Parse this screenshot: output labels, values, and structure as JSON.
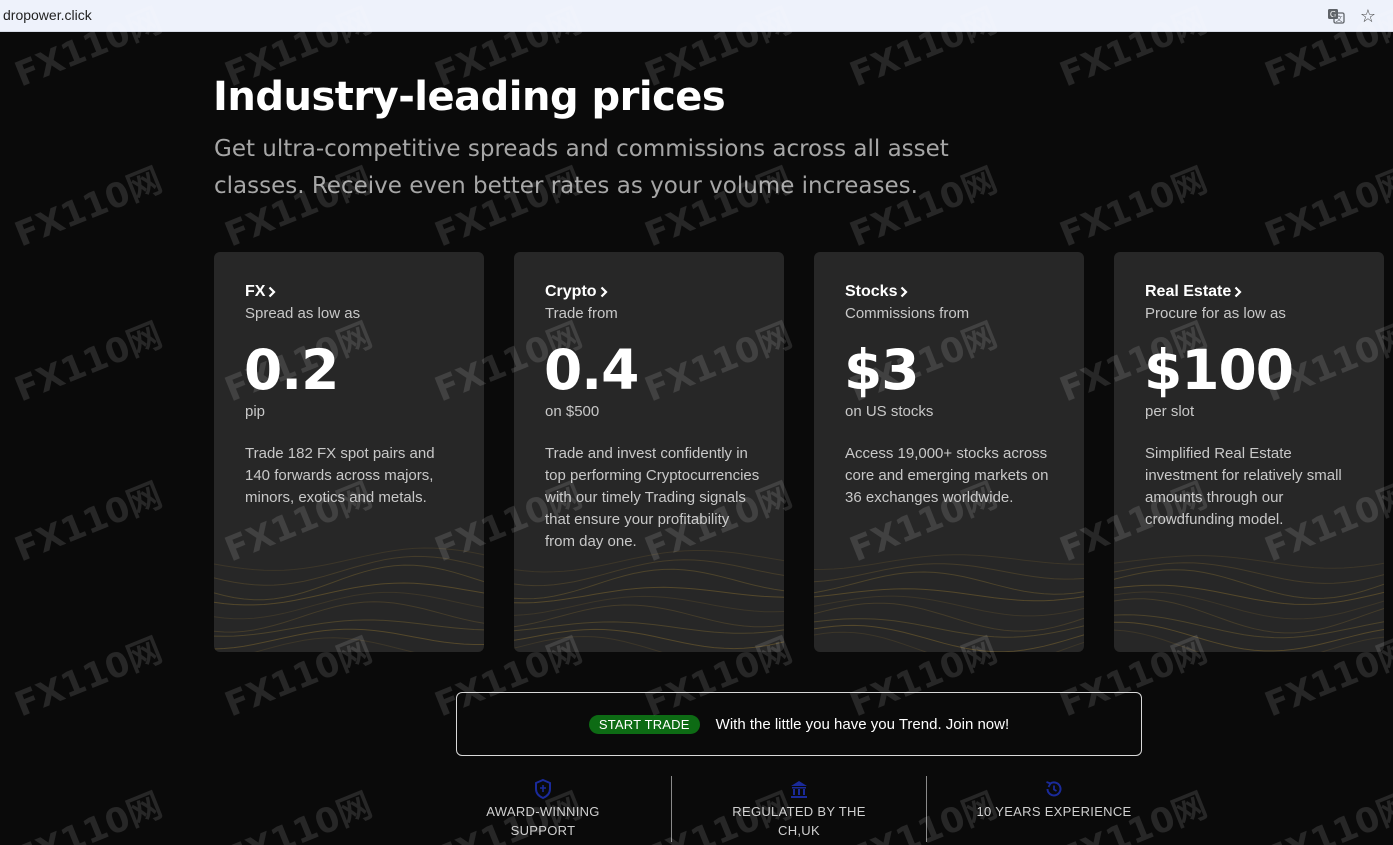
{
  "browser": {
    "url": "dropower.click",
    "translate_icon": "translate-icon",
    "bookmark_icon": "star-icon"
  },
  "hero": {
    "title": "Industry-leading prices",
    "subtitle": "Get ultra-competitive spreads and commissions across all asset classes. Receive even better rates as your volume increases."
  },
  "cards": [
    {
      "title": "FX",
      "sub": "Spread as low as",
      "value": "0.2",
      "unit": "pip",
      "desc": "Trade 182 FX spot pairs and 140 forwards across majors, minors, exotics and metals."
    },
    {
      "title": "Crypto",
      "sub": "Trade from",
      "value": "0.4",
      "unit": "on $500",
      "desc": "Trade and invest confidently in top performing Cryptocurrencies with our timely Trading signals that ensure your profitability from day one."
    },
    {
      "title": "Stocks",
      "sub": "Commissions from",
      "value": "$3",
      "unit": "on US stocks",
      "desc": "Access 19,000+ stocks across core and emerging markets on 36 exchanges worldwide."
    },
    {
      "title": "Real Estate",
      "sub": "Procure for as low as",
      "value": "$100",
      "unit": "per slot",
      "desc": "Simplified Real Estate investment for relatively small amounts through our crowdfunding model."
    }
  ],
  "cta": {
    "button": "START TRADE",
    "message": "With the little you have you Trend. Join now!"
  },
  "features": [
    {
      "icon": "shield-icon",
      "label": "AWARD-WINNING SUPPORT"
    },
    {
      "icon": "bank-icon",
      "label": "REGULATED BY THE CH,UK"
    },
    {
      "icon": "history-icon",
      "label": "10 YEARS EXPERIENCE"
    }
  ],
  "watermark": "110网",
  "colors": {
    "background": "#0a0a0a",
    "card": "#272727",
    "cta_pill": "#0d6b14",
    "feature_icon": "#1a2a9a",
    "wave_gold": "#7a6530"
  }
}
